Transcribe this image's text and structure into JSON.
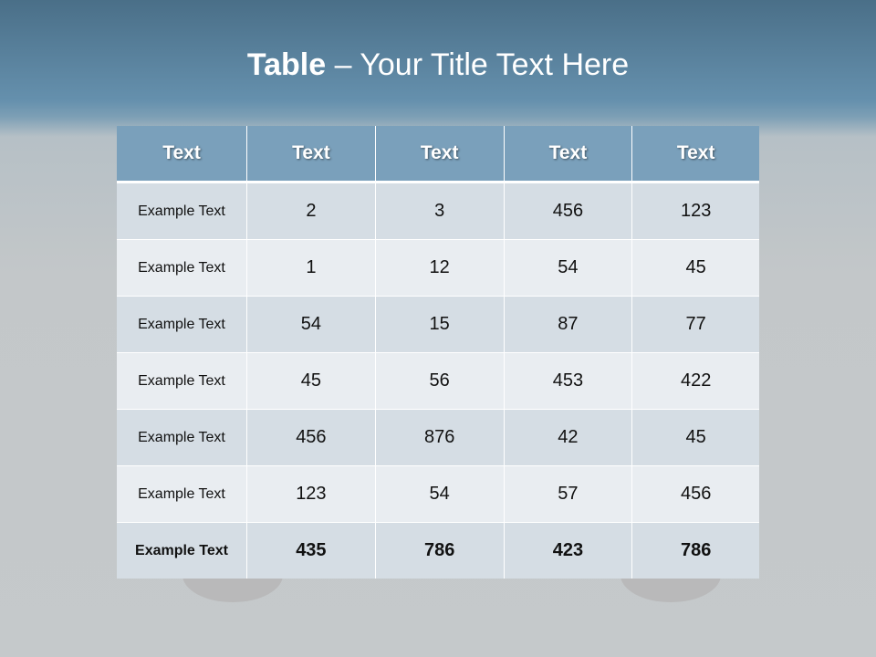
{
  "title": {
    "bold": "Table",
    "rest": " – Your Title Text Here"
  },
  "table": {
    "headers": [
      "Text",
      "Text",
      "Text",
      "Text",
      "Text"
    ],
    "rows": [
      [
        "Example Text",
        "2",
        "3",
        "456",
        "123"
      ],
      [
        "Example Text",
        "1",
        "12",
        "54",
        "45"
      ],
      [
        "Example Text",
        "54",
        "15",
        "87",
        "77"
      ],
      [
        "Example Text",
        "45",
        "56",
        "453",
        "422"
      ],
      [
        "Example Text",
        "456",
        "876",
        "42",
        "45"
      ],
      [
        "Example Text",
        "123",
        "54",
        "57",
        "456"
      ],
      [
        "Example Text",
        "435",
        "786",
        "423",
        "786"
      ]
    ]
  }
}
